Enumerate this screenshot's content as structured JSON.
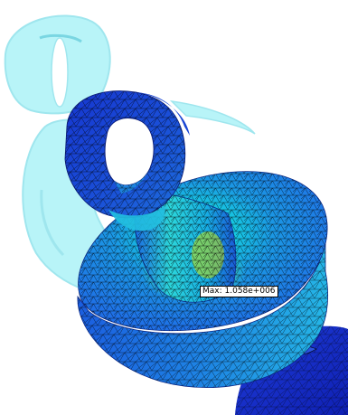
{
  "probe": {
    "label": "Max: 1.058e+006"
  },
  "colors": {
    "background": "#ffffff",
    "ghost_fill": "#b8f4f8",
    "ghost_edge": "#9fe6ee",
    "stress_low": "#1a3fd6",
    "stress_mid_low": "#1f8be0",
    "stress_mid": "#19d6d8",
    "stress_high": "#d8e000",
    "mesh_lines": "#000000"
  }
}
